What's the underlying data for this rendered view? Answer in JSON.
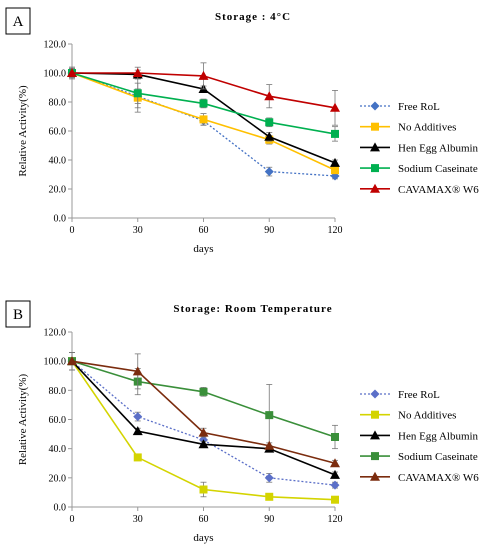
{
  "chart_data": [
    {
      "type": "line",
      "panel_label": "A",
      "title": "Storage : 4°C",
      "xlabel": "days",
      "ylabel": "Relative Activity(%)",
      "x": [
        0,
        30,
        60,
        90,
        120
      ],
      "x_ticks": [
        "0",
        "30",
        "60",
        "90",
        "120"
      ],
      "y_ticks": [
        "0.0",
        "20.0",
        "40.0",
        "60.0",
        "80.0",
        "100.0",
        "120.0"
      ],
      "ylim": [
        0,
        120
      ],
      "xlim": [
        0,
        120
      ],
      "grid": false,
      "legend_position": "right",
      "series": [
        {
          "name": "Free RoL",
          "color": "#4472C4",
          "marker": "diamond",
          "dashed": true,
          "values": [
            100,
            84,
            67,
            32,
            29
          ],
          "errors": [
            3,
            5,
            3,
            3,
            2
          ]
        },
        {
          "name": "No Additives",
          "color": "#FFC000",
          "marker": "square",
          "dashed": false,
          "values": [
            100,
            83,
            68,
            54,
            33
          ],
          "errors": [
            3,
            10,
            4,
            3,
            2
          ]
        },
        {
          "name": "Hen Egg Albumin",
          "color": "#000000",
          "marker": "triangle",
          "dashed": false,
          "values": [
            100,
            99,
            89,
            56,
            38
          ],
          "errors": [
            3,
            3,
            2,
            3,
            2
          ]
        },
        {
          "name": "Sodium Caseinate",
          "color": "#00B050",
          "marker": "square",
          "dashed": false,
          "values": [
            100,
            86,
            79,
            66,
            58
          ],
          "errors": [
            4,
            10,
            3,
            3,
            5
          ]
        },
        {
          "name": "CAVAMAX® W6",
          "color": "#C00000",
          "marker": "triangle",
          "dashed": false,
          "values": [
            100,
            100,
            98,
            84,
            76
          ],
          "errors": [
            4,
            4,
            9,
            8,
            12
          ]
        }
      ]
    },
    {
      "type": "line",
      "panel_label": "B",
      "title": "Storage: Room Temperature",
      "xlabel": "days",
      "ylabel": "Relative Activity(%)",
      "x": [
        0,
        30,
        60,
        90,
        120
      ],
      "x_ticks": [
        "0",
        "30",
        "60",
        "90",
        "120"
      ],
      "y_ticks": [
        "0.0",
        "20.0",
        "40.0",
        "60.0",
        "80.0",
        "100.0",
        "120.0"
      ],
      "ylim": [
        0,
        120
      ],
      "xlim": [
        0,
        120
      ],
      "grid": false,
      "legend_position": "right",
      "series": [
        {
          "name": "Free RoL",
          "color": "#5B6FC8",
          "marker": "diamond",
          "dashed": true,
          "values": [
            100,
            62,
            46,
            20,
            15
          ],
          "errors": [
            6,
            3,
            3,
            3,
            2
          ]
        },
        {
          "name": "No Additives",
          "color": "#D4D400",
          "marker": "square",
          "dashed": false,
          "values": [
            100,
            34,
            12,
            7,
            5
          ],
          "errors": [
            6,
            2,
            5,
            2,
            1
          ]
        },
        {
          "name": "Hen Egg Albumin",
          "color": "#000000",
          "marker": "triangle",
          "dashed": false,
          "values": [
            100,
            52,
            43,
            40,
            22
          ],
          "errors": [
            6,
            2,
            2,
            2,
            2
          ]
        },
        {
          "name": "Sodium Caseinate",
          "color": "#3A8F3A",
          "marker": "square",
          "dashed": false,
          "values": [
            100,
            86,
            79,
            63,
            48
          ],
          "errors": [
            6,
            9,
            3,
            21,
            8
          ]
        },
        {
          "name": "CAVAMAX® W6",
          "color": "#7B2C0E",
          "marker": "triangle",
          "dashed": false,
          "values": [
            100,
            93,
            51,
            42,
            30
          ],
          "errors": [
            6,
            12,
            3,
            2,
            2
          ]
        }
      ]
    }
  ]
}
